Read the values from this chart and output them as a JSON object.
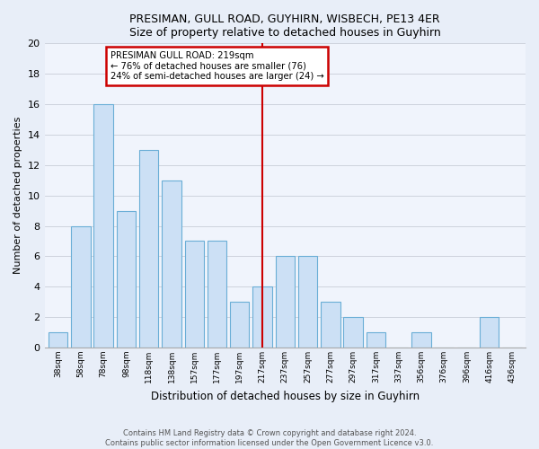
{
  "title": "PRESIMAN, GULL ROAD, GUYHIRN, WISBECH, PE13 4ER",
  "subtitle": "Size of property relative to detached houses in Guyhirn",
  "xlabel": "Distribution of detached houses by size in Guyhirn",
  "ylabel": "Number of detached properties",
  "categories": [
    "38sqm",
    "58sqm",
    "78sqm",
    "98sqm",
    "118sqm",
    "138sqm",
    "157sqm",
    "177sqm",
    "197sqm",
    "217sqm",
    "237sqm",
    "257sqm",
    "277sqm",
    "297sqm",
    "317sqm",
    "337sqm",
    "356sqm",
    "376sqm",
    "396sqm",
    "416sqm",
    "436sqm"
  ],
  "values": [
    1,
    8,
    16,
    9,
    13,
    11,
    7,
    7,
    3,
    4,
    6,
    6,
    3,
    2,
    1,
    0,
    1,
    0,
    0,
    2,
    0
  ],
  "bar_color": "#cce0f5",
  "bar_edge_color": "#6aaed6",
  "marker_index": 9,
  "annotation_title": "PRESIMAN GULL ROAD: 219sqm",
  "annotation_line1": "← 76% of detached houses are smaller (76)",
  "annotation_line2": "24% of semi-detached houses are larger (24) →",
  "vline_color": "#cc0000",
  "annotation_box_edge_color": "#cc0000",
  "ylim": [
    0,
    20
  ],
  "yticks": [
    0,
    2,
    4,
    6,
    8,
    10,
    12,
    14,
    16,
    18,
    20
  ],
  "footer1": "Contains HM Land Registry data © Crown copyright and database right 2024.",
  "footer2": "Contains public sector information licensed under the Open Government Licence v3.0.",
  "bg_color": "#e8eef8",
  "plot_bg_color": "#f0f4fc"
}
